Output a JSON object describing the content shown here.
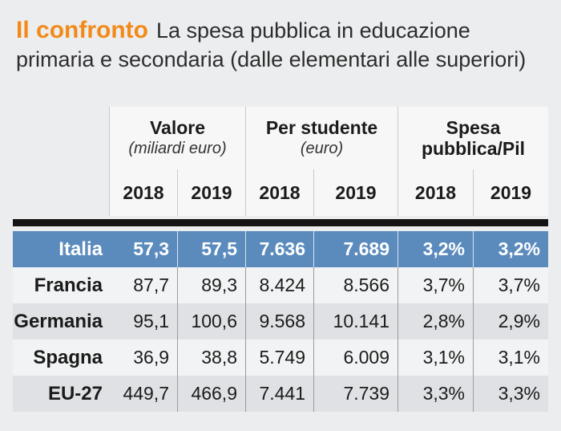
{
  "title": {
    "bold": "Il confronto",
    "text": "La spesa pubblica in educazione",
    "line2": "primaria e secondaria (dalle elementari alle superiori)"
  },
  "colors": {
    "accent": "#f28a1a",
    "highlight_row": "#5b8bbd"
  },
  "chart_data": {
    "type": "table",
    "groups": [
      {
        "name": "Valore",
        "unit": "(miliardi euro)"
      },
      {
        "name": "Per studente",
        "unit": "(euro)"
      },
      {
        "name": "Spesa pubblica/Pil",
        "unit": ""
      }
    ],
    "years": [
      "2018",
      "2019",
      "2018",
      "2019",
      "2018",
      "2019"
    ],
    "rows": [
      {
        "country": "Italia",
        "values": [
          "57,3",
          "57,5",
          "7.636",
          "7.689",
          "3,2%",
          "3,2%"
        ]
      },
      {
        "country": "Francia",
        "values": [
          "87,7",
          "89,3",
          "8.424",
          "8.566",
          "3,7%",
          "3,7%"
        ]
      },
      {
        "country": "Germania",
        "values": [
          "95,1",
          "100,6",
          "9.568",
          "10.141",
          "2,8%",
          "2,9%"
        ]
      },
      {
        "country": "Spagna",
        "values": [
          "36,9",
          "38,8",
          "5.749",
          "6.009",
          "3,1%",
          "3,1%"
        ]
      },
      {
        "country": "EU-27",
        "values": [
          "449,7",
          "466,9",
          "7.441",
          "7.739",
          "3,3%",
          "3,3%"
        ]
      }
    ]
  }
}
